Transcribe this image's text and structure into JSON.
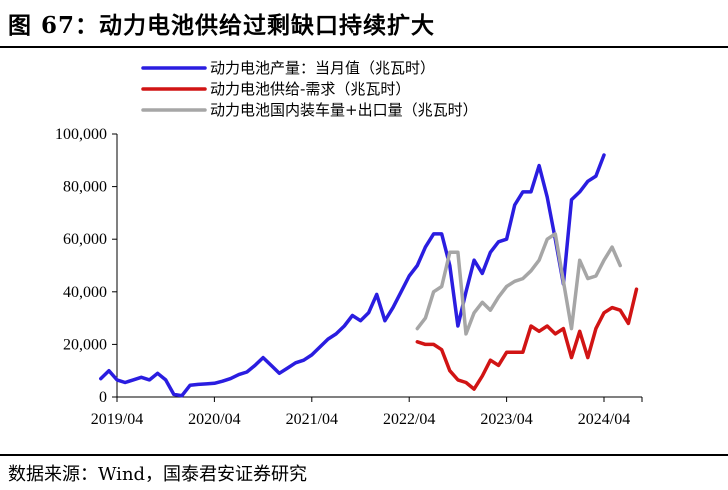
{
  "figure": {
    "title": "图 67：动力电池供给过剩缺口持续扩大",
    "source": "数据来源：Wind，国泰君安证券研究"
  },
  "chart_data": {
    "type": "line",
    "title": "图 67：动力电池供给过剩缺口持续扩大",
    "xlabel": "",
    "ylabel": "",
    "ylim": [
      0,
      100000
    ],
    "yticks": [
      0,
      20000,
      40000,
      60000,
      80000,
      100000
    ],
    "ytick_labels": [
      "0",
      "20,000",
      "40,000",
      "60,000",
      "80,000",
      "100,000"
    ],
    "xtick_labels": [
      "2019/04",
      "2020/04",
      "2021/04",
      "2022/04",
      "2023/04",
      "2024/04"
    ],
    "x_index_of_first_tick": 0,
    "months_per_tick": 12,
    "x_start_index": -2,
    "x_end_index": 63,
    "grid": false,
    "legend": "top",
    "series": [
      {
        "name": "动力电池产量：当月值（兆瓦时）",
        "color": "#2a1de0",
        "start_index": -2,
        "values": [
          7000,
          10000,
          6500,
          5500,
          6500,
          7500,
          6500,
          9000,
          6500,
          1000,
          500,
          4500,
          4800,
          5000,
          5200,
          6000,
          7000,
          8500,
          9500,
          12000,
          15000,
          12000,
          9000,
          11000,
          13000,
          14000,
          16000,
          19000,
          22000,
          24000,
          27000,
          31000,
          29000,
          32000,
          39000,
          29000,
          34000,
          40000,
          46000,
          50000,
          57000,
          62000,
          62000,
          50000,
          27000,
          40000,
          52000,
          47000,
          55000,
          59000,
          60000,
          73000,
          78000,
          78000,
          88000,
          76000,
          60000,
          43000,
          75000,
          78000,
          82000,
          84000,
          92000
        ]
      },
      {
        "name": "动力电池供给-需求（兆瓦时）",
        "color": "#d11414",
        "start_index": 37,
        "values": [
          21000,
          20000,
          20000,
          18000,
          10000,
          6500,
          5500,
          3000,
          8000,
          14000,
          12000,
          17000,
          17000,
          17000,
          27000,
          25000,
          27000,
          24000,
          26000,
          15000,
          25000,
          15000,
          26000,
          32000,
          34000,
          33000,
          28000,
          41000
        ]
      },
      {
        "name": "动力电池国内装车量+出口量（兆瓦时）",
        "color": "#a6a6a6",
        "start_index": 37,
        "values": [
          26000,
          30000,
          40000,
          42000,
          55000,
          55000,
          24000,
          32000,
          36000,
          33000,
          38000,
          42000,
          44000,
          45000,
          48000,
          52000,
          60000,
          62000,
          44000,
          26000,
          52000,
          45000,
          46000,
          52000,
          57000,
          50000
        ]
      }
    ]
  }
}
